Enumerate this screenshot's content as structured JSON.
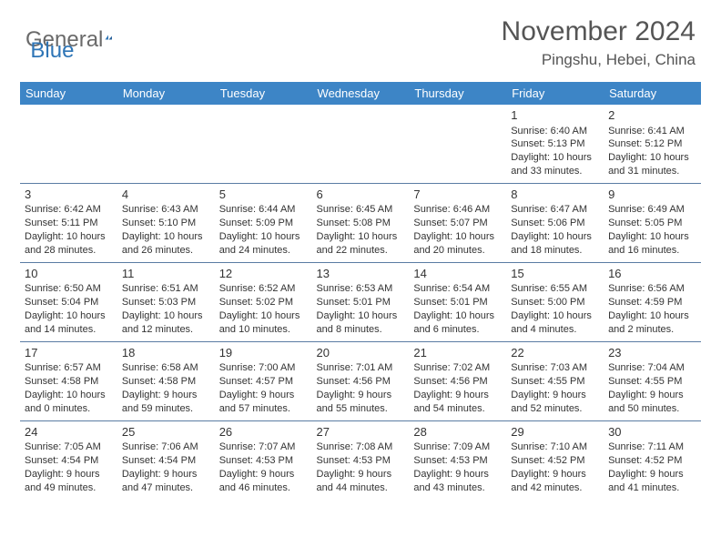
{
  "logo": {
    "text1": "General",
    "text2": "Blue"
  },
  "header": {
    "month": "November 2024",
    "location": "Pingshu, Hebei, China"
  },
  "colors": {
    "header_bg": "#3d85c6",
    "header_text": "#ffffff",
    "border": "#5a7ca3",
    "text": "#333333",
    "title_text": "#555555",
    "logo_gray": "#6a6a6a",
    "logo_blue": "#2e75b6"
  },
  "day_headers": [
    "Sunday",
    "Monday",
    "Tuesday",
    "Wednesday",
    "Thursday",
    "Friday",
    "Saturday"
  ],
  "weeks": [
    [
      null,
      null,
      null,
      null,
      null,
      {
        "n": "1",
        "sr": "6:40 AM",
        "ss": "5:13 PM",
        "dl": "10 hours and 33 minutes."
      },
      {
        "n": "2",
        "sr": "6:41 AM",
        "ss": "5:12 PM",
        "dl": "10 hours and 31 minutes."
      }
    ],
    [
      {
        "n": "3",
        "sr": "6:42 AM",
        "ss": "5:11 PM",
        "dl": "10 hours and 28 minutes."
      },
      {
        "n": "4",
        "sr": "6:43 AM",
        "ss": "5:10 PM",
        "dl": "10 hours and 26 minutes."
      },
      {
        "n": "5",
        "sr": "6:44 AM",
        "ss": "5:09 PM",
        "dl": "10 hours and 24 minutes."
      },
      {
        "n": "6",
        "sr": "6:45 AM",
        "ss": "5:08 PM",
        "dl": "10 hours and 22 minutes."
      },
      {
        "n": "7",
        "sr": "6:46 AM",
        "ss": "5:07 PM",
        "dl": "10 hours and 20 minutes."
      },
      {
        "n": "8",
        "sr": "6:47 AM",
        "ss": "5:06 PM",
        "dl": "10 hours and 18 minutes."
      },
      {
        "n": "9",
        "sr": "6:49 AM",
        "ss": "5:05 PM",
        "dl": "10 hours and 16 minutes."
      }
    ],
    [
      {
        "n": "10",
        "sr": "6:50 AM",
        "ss": "5:04 PM",
        "dl": "10 hours and 14 minutes."
      },
      {
        "n": "11",
        "sr": "6:51 AM",
        "ss": "5:03 PM",
        "dl": "10 hours and 12 minutes."
      },
      {
        "n": "12",
        "sr": "6:52 AM",
        "ss": "5:02 PM",
        "dl": "10 hours and 10 minutes."
      },
      {
        "n": "13",
        "sr": "6:53 AM",
        "ss": "5:01 PM",
        "dl": "10 hours and 8 minutes."
      },
      {
        "n": "14",
        "sr": "6:54 AM",
        "ss": "5:01 PM",
        "dl": "10 hours and 6 minutes."
      },
      {
        "n": "15",
        "sr": "6:55 AM",
        "ss": "5:00 PM",
        "dl": "10 hours and 4 minutes."
      },
      {
        "n": "16",
        "sr": "6:56 AM",
        "ss": "4:59 PM",
        "dl": "10 hours and 2 minutes."
      }
    ],
    [
      {
        "n": "17",
        "sr": "6:57 AM",
        "ss": "4:58 PM",
        "dl": "10 hours and 0 minutes."
      },
      {
        "n": "18",
        "sr": "6:58 AM",
        "ss": "4:58 PM",
        "dl": "9 hours and 59 minutes."
      },
      {
        "n": "19",
        "sr": "7:00 AM",
        "ss": "4:57 PM",
        "dl": "9 hours and 57 minutes."
      },
      {
        "n": "20",
        "sr": "7:01 AM",
        "ss": "4:56 PM",
        "dl": "9 hours and 55 minutes."
      },
      {
        "n": "21",
        "sr": "7:02 AM",
        "ss": "4:56 PM",
        "dl": "9 hours and 54 minutes."
      },
      {
        "n": "22",
        "sr": "7:03 AM",
        "ss": "4:55 PM",
        "dl": "9 hours and 52 minutes."
      },
      {
        "n": "23",
        "sr": "7:04 AM",
        "ss": "4:55 PM",
        "dl": "9 hours and 50 minutes."
      }
    ],
    [
      {
        "n": "24",
        "sr": "7:05 AM",
        "ss": "4:54 PM",
        "dl": "9 hours and 49 minutes."
      },
      {
        "n": "25",
        "sr": "7:06 AM",
        "ss": "4:54 PM",
        "dl": "9 hours and 47 minutes."
      },
      {
        "n": "26",
        "sr": "7:07 AM",
        "ss": "4:53 PM",
        "dl": "9 hours and 46 minutes."
      },
      {
        "n": "27",
        "sr": "7:08 AM",
        "ss": "4:53 PM",
        "dl": "9 hours and 44 minutes."
      },
      {
        "n": "28",
        "sr": "7:09 AM",
        "ss": "4:53 PM",
        "dl": "9 hours and 43 minutes."
      },
      {
        "n": "29",
        "sr": "7:10 AM",
        "ss": "4:52 PM",
        "dl": "9 hours and 42 minutes."
      },
      {
        "n": "30",
        "sr": "7:11 AM",
        "ss": "4:52 PM",
        "dl": "9 hours and 41 minutes."
      }
    ]
  ],
  "labels": {
    "sunrise": "Sunrise:",
    "sunset": "Sunset:",
    "daylight": "Daylight:"
  }
}
